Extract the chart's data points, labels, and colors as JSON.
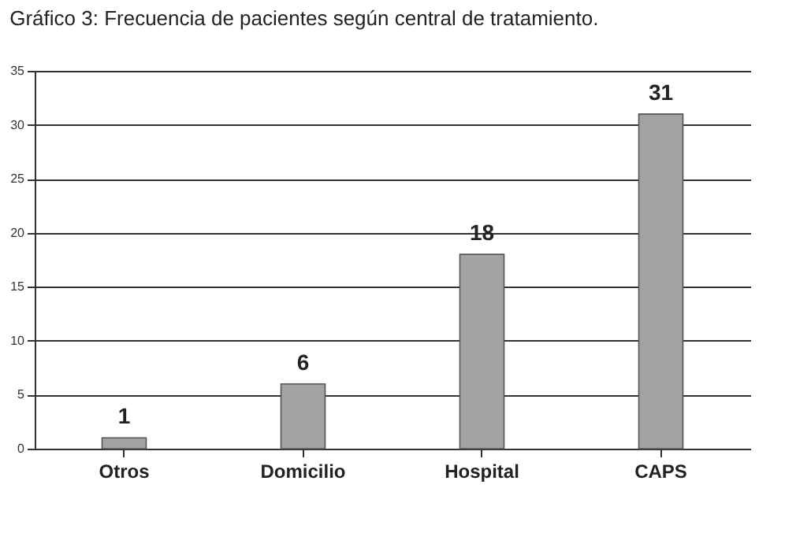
{
  "chart_data": {
    "type": "bar",
    "title": "Gráfico 3: Frecuencia de pacientes según central de tratamiento.",
    "categories": [
      "Otros",
      "Domicilio",
      "Hospital",
      "CAPS"
    ],
    "values": [
      1,
      6,
      18,
      31
    ],
    "color": "#a3a3a3",
    "ylim": [
      0,
      35
    ],
    "yticks": [
      0,
      5,
      10,
      15,
      20,
      25,
      30,
      35
    ],
    "grid": "y",
    "data_labels": true
  }
}
